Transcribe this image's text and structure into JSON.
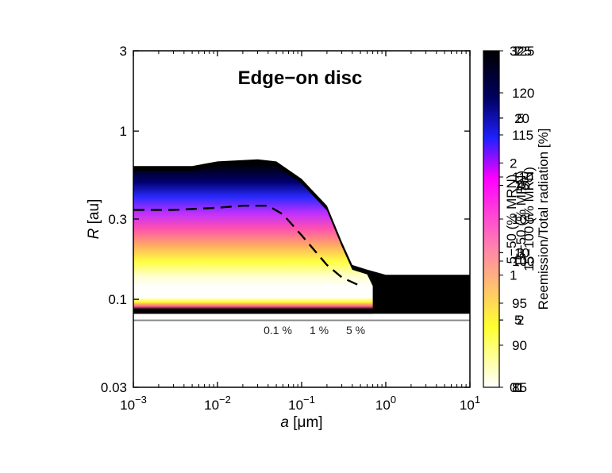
{
  "chart_data": {
    "type": "heatmap",
    "title": "Edge−on disc",
    "xlabel_var": "a",
    "xlabel_unit": " [μm]",
    "ylabel_var": "R",
    "ylabel_unit": " [au]",
    "xscale": "log",
    "yscale": "log",
    "xlim": [
      0.001,
      10
    ],
    "ylim": [
      0.03,
      3
    ],
    "x_ticks": [
      {
        "base": "10",
        "exp": "−3"
      },
      {
        "base": "10",
        "exp": "−2"
      },
      {
        "base": "10",
        "exp": "−1"
      },
      {
        "base": "10",
        "exp": "0"
      },
      {
        "base": "10",
        "exp": "1"
      }
    ],
    "y_ticks": [
      "3",
      "1",
      "0.3",
      "0.1",
      "0.03"
    ],
    "contour_labels": [
      "0.1 %",
      "1 %",
      "5 %"
    ],
    "dashed_contour": {
      "a": [
        0.001,
        0.003,
        0.01,
        0.02,
        0.04,
        0.06,
        0.1,
        0.2,
        0.3,
        0.5
      ],
      "R": [
        0.34,
        0.34,
        0.35,
        0.36,
        0.36,
        0.32,
        0.24,
        0.16,
        0.135,
        0.12
      ]
    },
    "outer_boundary": {
      "a": [
        0.001,
        0.005,
        0.01,
        0.03,
        0.05,
        0.1,
        0.2,
        0.3,
        0.4,
        0.6,
        1,
        10
      ],
      "R_top": [
        0.62,
        0.62,
        0.66,
        0.68,
        0.66,
        0.52,
        0.36,
        0.22,
        0.16,
        0.15,
        0.14,
        0.14
      ],
      "R_bottom": [
        0.082,
        0.082,
        0.082,
        0.082,
        0.082,
        0.082,
        0.082,
        0.082,
        0.082,
        0.082,
        0.082,
        0.082
      ]
    },
    "horizontal_line_R": 0.075,
    "colorbar": {
      "label": "Reemission/Total radiation [%]",
      "overlapping_labels": [
        "5−50 (% MRN)",
        "15−50 (% MRN)",
        "15−100 (% MRN)"
      ],
      "tick_columns": [
        [
          "3",
          "2",
          "1",
          "0"
        ],
        [
          "125",
          "120",
          "115",
          "110",
          "105",
          "100",
          "95",
          "90",
          "85"
        ],
        [
          "7",
          "20",
          "15",
          "10",
          "5",
          "0"
        ],
        [
          "25",
          "5",
          "4",
          "3",
          "2",
          "1"
        ]
      ],
      "colors": [
        "#ffffff",
        "#ffff00",
        "#ff7fbf",
        "#ff00ff",
        "#0000ff",
        "#000000"
      ]
    }
  }
}
